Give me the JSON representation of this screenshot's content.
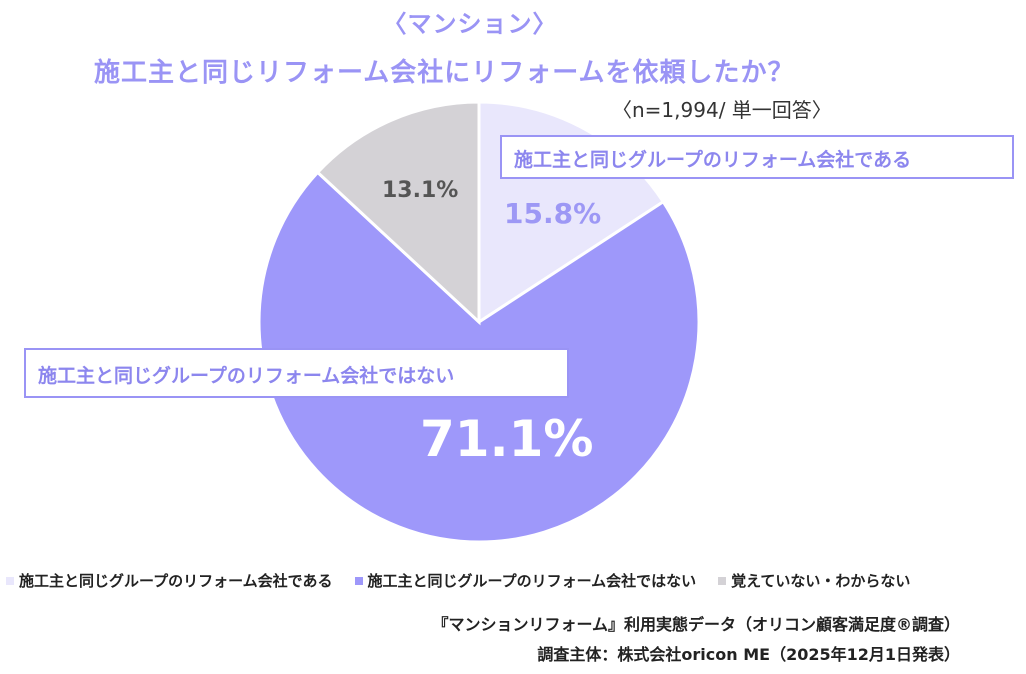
{
  "subtitle": "〈マンション〉",
  "title": "施工主と同じリフォーム会社にリフォームを依頼したか？",
  "sample_note": "〈n=1,994/ 単一回答〉",
  "colors": {
    "accent": "#9a94f5",
    "same_company": "#e9e7fc",
    "not_same_company": "#9e98fa",
    "unknown": "#d4d2d6"
  },
  "chart_data": {
    "type": "pie",
    "title": "施工主と同じリフォーム会社にリフォームを依頼したか？",
    "categories": [
      "施工主と同じグループのリフォーム会社である",
      "施工主と同じグループのリフォーム会社ではない",
      "覚えていない・わからない"
    ],
    "values": [
      15.8,
      71.1,
      13.1
    ],
    "value_labels": [
      "15.8%",
      "71.1%",
      "13.1%"
    ],
    "start_angle_deg": 0,
    "direction": "clockwise",
    "legend_position": "bottom-left"
  },
  "callouts": {
    "same_company": "施工主と同じグループのリフォーム会社である",
    "not_same_company": "施工主と同じグループのリフォーム会社ではない"
  },
  "legend": [
    {
      "label": "施工主と同じグループのリフォーム会社である",
      "color": "#e9e7fc"
    },
    {
      "label": "施工主と同じグループのリフォーム会社ではない",
      "color": "#9e98fa"
    },
    {
      "label": "覚えていない・わからない",
      "color": "#d4d2d6"
    }
  ],
  "footer": {
    "line1": "『マンションリフォーム』利用実態データ（オリコン顧客満足度®調査）",
    "line2": "調査主体：株式会社oricon ME（2025年12月1日発表）"
  }
}
